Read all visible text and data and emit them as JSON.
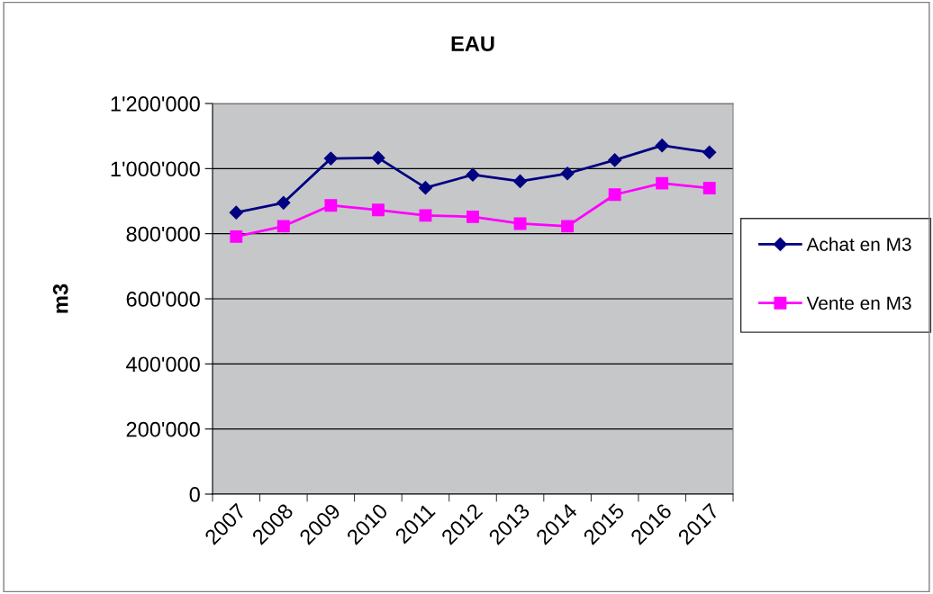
{
  "chart_data": {
    "type": "line",
    "title": "EAU",
    "ylabel": "m3",
    "categories": [
      "2007",
      "2008",
      "2009",
      "2010",
      "2011",
      "2012",
      "2013",
      "2014",
      "2015",
      "2016",
      "2017"
    ],
    "series": [
      {
        "name": "Achat en M3",
        "color": "#000080",
        "marker": "diamond",
        "values": [
          865000,
          895000,
          1031000,
          1033000,
          941000,
          981000,
          961000,
          985000,
          1026000,
          1071000,
          1050000
        ]
      },
      {
        "name": "Vente en M3",
        "color": "#ff00ff",
        "marker": "square",
        "values": [
          791000,
          823000,
          887000,
          873000,
          856000,
          852000,
          831000,
          823000,
          920000,
          955000,
          940000
        ]
      }
    ],
    "ylim": [
      0,
      1200000
    ],
    "yticks": [
      {
        "value": 0,
        "label": "0"
      },
      {
        "value": 200000,
        "label": "200'000"
      },
      {
        "value": 400000,
        "label": "400'000"
      },
      {
        "value": 600000,
        "label": "600'000"
      },
      {
        "value": 800000,
        "label": "800'000"
      },
      {
        "value": 1000000,
        "label": "1'000'000"
      },
      {
        "value": 1200000,
        "label": "1'200'000"
      }
    ],
    "grid": "y",
    "legend": "right",
    "line_style": "solid"
  }
}
